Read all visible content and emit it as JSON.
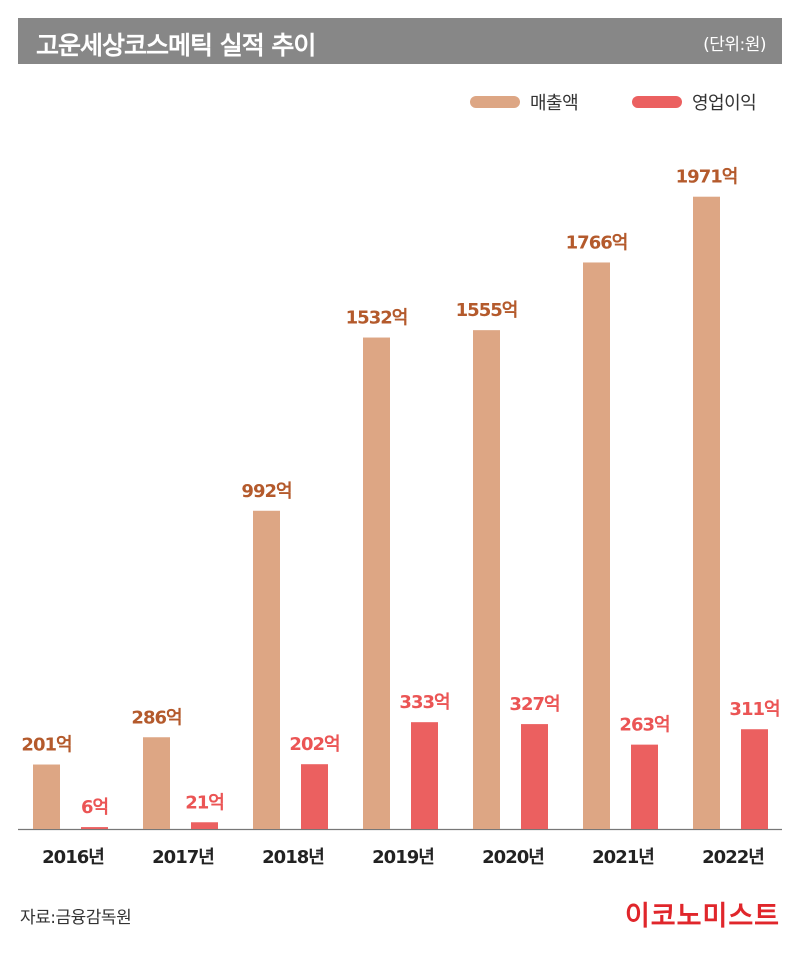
{
  "header": {
    "title": "고운세상코스메틱 실적 추이",
    "unit": "(단위:원)"
  },
  "legend": {
    "items": [
      {
        "label": "매출액",
        "color": "#dda684"
      },
      {
        "label": "영업이익",
        "color": "#eb6060"
      }
    ]
  },
  "chart_data": {
    "type": "bar",
    "categories": [
      "2016년",
      "2017년",
      "2018년",
      "2019년",
      "2020년",
      "2021년",
      "2022년"
    ],
    "series": [
      {
        "name": "매출액",
        "values": [
          201,
          286,
          992,
          1532,
          1555,
          1766,
          1971
        ],
        "labels": [
          "201억",
          "286억",
          "992억",
          "1532억",
          "1555억",
          "1766억",
          "1971억"
        ],
        "color": "#dda684",
        "label_color": "#b45a2c"
      },
      {
        "name": "영업이익",
        "values": [
          6,
          21,
          202,
          333,
          327,
          263,
          311
        ],
        "labels": [
          "6억",
          "21억",
          "202억",
          "333억",
          "327억",
          "263억",
          "311억"
        ],
        "color": "#eb6060",
        "label_color": "#eb5555"
      }
    ],
    "title": "고운세상코스메틱 실적 추이",
    "xlabel": "",
    "ylabel": "",
    "ylim": [
      0,
      2000
    ],
    "grid": false,
    "legend_position": "top-right"
  },
  "footer": {
    "source": "자료:금융감독원",
    "brand": "이코노미스트"
  }
}
